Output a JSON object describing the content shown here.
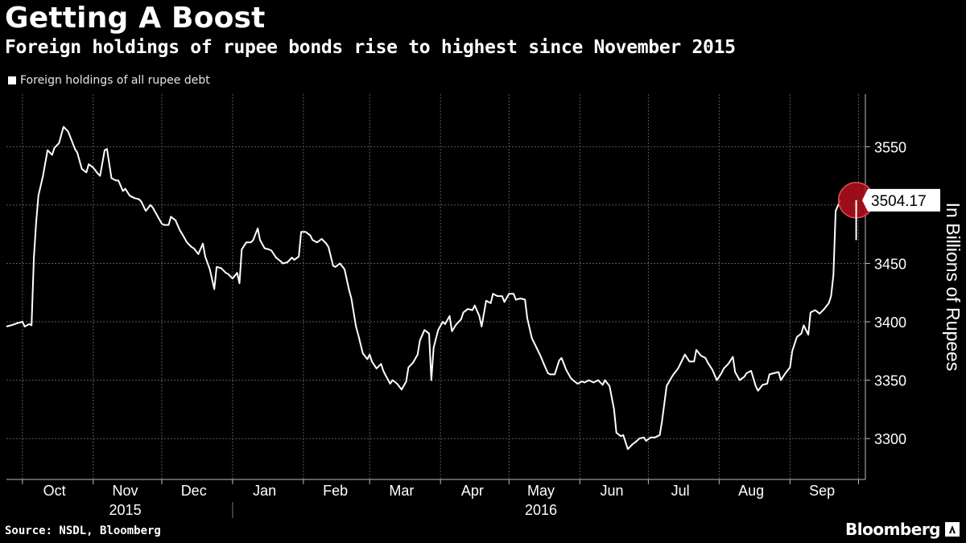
{
  "header": {
    "title": "Getting A Boost",
    "subtitle": "Foreign holdings of rupee bonds rise to highest since November 2015"
  },
  "legend": {
    "label": "Foreign holdings of all rupee debt"
  },
  "footer": {
    "source": "Source: NSDL, Bloomberg",
    "brand": "Bloomberg"
  },
  "colors": {
    "background": "#000000",
    "line": "#ffffff",
    "highlight": "#b5101f"
  },
  "chart_data": {
    "type": "line",
    "title": "Getting A Boost",
    "subtitle": "Foreign holdings of rupee bonds rise to highest since November 2015",
    "ylabel": "In Billions of Rupees",
    "xlabel": "",
    "ylim": [
      3265,
      3595
    ],
    "y_ticks": [
      3300,
      3350,
      3400,
      3450,
      3500,
      3550
    ],
    "grid": true,
    "legend_position": "top-left",
    "x_range": [
      "2015-09-24",
      "2016-10-04"
    ],
    "month_ticks": [
      {
        "label": "Oct",
        "date": "2015-10-15"
      },
      {
        "label": "Nov",
        "date": "2015-11-15"
      },
      {
        "label": "Dec",
        "date": "2015-12-15"
      },
      {
        "label": "Jan",
        "date": "2016-01-15"
      },
      {
        "label": "Feb",
        "date": "2016-02-15"
      },
      {
        "label": "Mar",
        "date": "2016-03-15"
      },
      {
        "label": "Apr",
        "date": "2016-04-15"
      },
      {
        "label": "May",
        "date": "2016-05-15"
      },
      {
        "label": "Jun",
        "date": "2016-06-15"
      },
      {
        "label": "Jul",
        "date": "2016-07-15"
      },
      {
        "label": "Aug",
        "date": "2016-08-15"
      },
      {
        "label": "Sep",
        "date": "2016-09-15"
      }
    ],
    "month_boundaries": [
      "2015-10-01",
      "2015-11-01",
      "2015-12-01",
      "2016-01-01",
      "2016-02-01",
      "2016-03-01",
      "2016-04-01",
      "2016-05-01",
      "2016-06-01",
      "2016-07-01",
      "2016-08-01",
      "2016-09-01",
      "2016-10-01"
    ],
    "year_labels": [
      {
        "label": "2015",
        "date": "2015-11-15"
      },
      {
        "label": "2016",
        "date": "2016-05-15"
      }
    ],
    "year_divider": "2016-01-01",
    "last_value": {
      "date": "2016-09-30",
      "value": 3504.17,
      "label": "3504.17"
    },
    "series": [
      {
        "name": "Foreign holdings of all rupee debt",
        "points": [
          [
            "2015-09-24",
            3396
          ],
          [
            "2015-09-26",
            3397
          ],
          [
            "2015-09-29",
            3399
          ],
          [
            "2015-10-01",
            3400
          ],
          [
            "2015-10-02",
            3396
          ],
          [
            "2015-10-04",
            3398
          ],
          [
            "2015-10-05",
            3397
          ],
          [
            "2015-10-06",
            3455
          ],
          [
            "2015-10-07",
            3485
          ],
          [
            "2015-10-08",
            3508
          ],
          [
            "2015-10-10",
            3525
          ],
          [
            "2015-10-12",
            3547
          ],
          [
            "2015-10-14",
            3543
          ],
          [
            "2015-10-15",
            3549
          ],
          [
            "2015-10-17",
            3553
          ],
          [
            "2015-10-19",
            3567
          ],
          [
            "2015-10-21",
            3563
          ],
          [
            "2015-10-22",
            3558
          ],
          [
            "2015-10-24",
            3548
          ],
          [
            "2015-10-25",
            3545
          ],
          [
            "2015-10-27",
            3531
          ],
          [
            "2015-10-29",
            3528
          ],
          [
            "2015-10-30",
            3535
          ],
          [
            "2015-11-01",
            3532
          ],
          [
            "2015-11-03",
            3527
          ],
          [
            "2015-11-04",
            3525
          ],
          [
            "2015-11-06",
            3547
          ],
          [
            "2015-11-07",
            3548
          ],
          [
            "2015-11-09",
            3523
          ],
          [
            "2015-11-11",
            3521
          ],
          [
            "2015-11-12",
            3521
          ],
          [
            "2015-11-14",
            3512
          ],
          [
            "2015-11-15",
            3514
          ],
          [
            "2015-11-17",
            3508
          ],
          [
            "2015-11-19",
            3506
          ],
          [
            "2015-11-21",
            3505
          ],
          [
            "2015-11-22",
            3503
          ],
          [
            "2015-11-24",
            3495
          ],
          [
            "2015-11-26",
            3500
          ],
          [
            "2015-11-27",
            3498
          ],
          [
            "2015-11-29",
            3491
          ],
          [
            "2015-12-01",
            3484
          ],
          [
            "2015-12-02",
            3483
          ],
          [
            "2015-12-04",
            3483
          ],
          [
            "2015-12-05",
            3490
          ],
          [
            "2015-12-07",
            3487
          ],
          [
            "2015-12-09",
            3478
          ],
          [
            "2015-12-10",
            3475
          ],
          [
            "2015-12-12",
            3468
          ],
          [
            "2015-12-14",
            3464
          ],
          [
            "2015-12-15",
            3463
          ],
          [
            "2015-12-17",
            3458
          ],
          [
            "2015-12-19",
            3467
          ],
          [
            "2015-12-20",
            3456
          ],
          [
            "2015-12-22",
            3445
          ],
          [
            "2015-12-24",
            3428
          ],
          [
            "2015-12-25",
            3447
          ],
          [
            "2015-12-27",
            3446
          ],
          [
            "2015-12-29",
            3442
          ],
          [
            "2015-12-30",
            3441
          ],
          [
            "2016-01-01",
            3437
          ],
          [
            "2016-01-03",
            3442
          ],
          [
            "2016-01-04",
            3433
          ],
          [
            "2016-01-05",
            3462
          ],
          [
            "2016-01-07",
            3468
          ],
          [
            "2016-01-09",
            3468
          ],
          [
            "2016-01-10",
            3470
          ],
          [
            "2016-01-12",
            3480
          ],
          [
            "2016-01-13",
            3470
          ],
          [
            "2016-01-15",
            3463
          ],
          [
            "2016-01-17",
            3462
          ],
          [
            "2016-01-18",
            3461
          ],
          [
            "2016-01-20",
            3455
          ],
          [
            "2016-01-22",
            3452
          ],
          [
            "2016-01-23",
            3450
          ],
          [
            "2016-01-25",
            3451
          ],
          [
            "2016-01-27",
            3455
          ],
          [
            "2016-01-28",
            3453
          ],
          [
            "2016-01-30",
            3456
          ],
          [
            "2016-01-31",
            3477
          ],
          [
            "2016-02-02",
            3477
          ],
          [
            "2016-02-04",
            3474
          ],
          [
            "2016-02-05",
            3470
          ],
          [
            "2016-02-07",
            3468
          ],
          [
            "2016-02-09",
            3471
          ],
          [
            "2016-02-11",
            3467
          ],
          [
            "2016-02-12",
            3464
          ],
          [
            "2016-02-14",
            3448
          ],
          [
            "2016-02-15",
            3447
          ],
          [
            "2016-02-17",
            3450
          ],
          [
            "2016-02-19",
            3445
          ],
          [
            "2016-02-21",
            3427
          ],
          [
            "2016-02-22",
            3420
          ],
          [
            "2016-02-24",
            3396
          ],
          [
            "2016-02-25",
            3389
          ],
          [
            "2016-02-27",
            3373
          ],
          [
            "2016-02-29",
            3368
          ],
          [
            "2016-03-01",
            3372
          ],
          [
            "2016-03-02",
            3366
          ],
          [
            "2016-03-04",
            3360
          ],
          [
            "2016-03-06",
            3364
          ],
          [
            "2016-03-07",
            3358
          ],
          [
            "2016-03-08",
            3354
          ],
          [
            "2016-03-10",
            3347
          ],
          [
            "2016-03-11",
            3350
          ],
          [
            "2016-03-13",
            3347
          ],
          [
            "2016-03-15",
            3342
          ],
          [
            "2016-03-17",
            3349
          ],
          [
            "2016-03-18",
            3361
          ],
          [
            "2016-03-20",
            3365
          ],
          [
            "2016-03-22",
            3372
          ],
          [
            "2016-03-23",
            3384
          ],
          [
            "2016-03-25",
            3393
          ],
          [
            "2016-03-27",
            3390
          ],
          [
            "2016-03-28",
            3350
          ],
          [
            "2016-03-29",
            3378
          ],
          [
            "2016-03-31",
            3393
          ],
          [
            "2016-04-02",
            3400
          ],
          [
            "2016-04-03",
            3398
          ],
          [
            "2016-04-05",
            3405
          ],
          [
            "2016-04-06",
            3392
          ],
          [
            "2016-04-08",
            3398
          ],
          [
            "2016-04-10",
            3402
          ],
          [
            "2016-04-11",
            3408
          ],
          [
            "2016-04-13",
            3411
          ],
          [
            "2016-04-15",
            3410
          ],
          [
            "2016-04-16",
            3414
          ],
          [
            "2016-04-18",
            3405
          ],
          [
            "2016-04-19",
            3396
          ],
          [
            "2016-04-21",
            3418
          ],
          [
            "2016-04-23",
            3416
          ],
          [
            "2016-04-24",
            3424
          ],
          [
            "2016-04-26",
            3422
          ],
          [
            "2016-04-28",
            3422
          ],
          [
            "2016-04-29",
            3417
          ],
          [
            "2016-05-01",
            3424
          ],
          [
            "2016-05-03",
            3424
          ],
          [
            "2016-05-04",
            3419
          ],
          [
            "2016-05-06",
            3420
          ],
          [
            "2016-05-08",
            3419
          ],
          [
            "2016-05-09",
            3403
          ],
          [
            "2016-05-11",
            3386
          ],
          [
            "2016-05-13",
            3378
          ],
          [
            "2016-05-15",
            3370
          ],
          [
            "2016-05-16",
            3365
          ],
          [
            "2016-05-18",
            3356
          ],
          [
            "2016-05-19",
            3355
          ],
          [
            "2016-05-21",
            3355
          ],
          [
            "2016-05-23",
            3367
          ],
          [
            "2016-05-24",
            3369
          ],
          [
            "2016-05-26",
            3359
          ],
          [
            "2016-05-28",
            3352
          ],
          [
            "2016-05-29",
            3350
          ],
          [
            "2016-05-31",
            3347
          ],
          [
            "2016-06-02",
            3349
          ],
          [
            "2016-06-03",
            3348
          ],
          [
            "2016-06-05",
            3350
          ],
          [
            "2016-06-07",
            3348
          ],
          [
            "2016-06-09",
            3350
          ],
          [
            "2016-06-11",
            3346
          ],
          [
            "2016-06-12",
            3350
          ],
          [
            "2016-06-14",
            3345
          ],
          [
            "2016-06-16",
            3325
          ],
          [
            "2016-06-17",
            3305
          ],
          [
            "2016-06-19",
            3302
          ],
          [
            "2016-06-20",
            3303
          ],
          [
            "2016-06-22",
            3291
          ],
          [
            "2016-06-24",
            3295
          ],
          [
            "2016-06-26",
            3298
          ],
          [
            "2016-06-27",
            3300
          ],
          [
            "2016-06-29",
            3301
          ],
          [
            "2016-06-30",
            3298
          ],
          [
            "2016-07-02",
            3301
          ],
          [
            "2016-07-04",
            3301
          ],
          [
            "2016-07-06",
            3303
          ],
          [
            "2016-07-07",
            3315
          ],
          [
            "2016-07-09",
            3345
          ],
          [
            "2016-07-11",
            3352
          ],
          [
            "2016-07-12",
            3355
          ],
          [
            "2016-07-14",
            3360
          ],
          [
            "2016-07-16",
            3368
          ],
          [
            "2016-07-17",
            3372
          ],
          [
            "2016-07-19",
            3366
          ],
          [
            "2016-07-21",
            3366
          ],
          [
            "2016-07-22",
            3376
          ],
          [
            "2016-07-24",
            3371
          ],
          [
            "2016-07-26",
            3369
          ],
          [
            "2016-07-27",
            3365
          ],
          [
            "2016-07-29",
            3359
          ],
          [
            "2016-07-31",
            3350
          ],
          [
            "2016-08-02",
            3356
          ],
          [
            "2016-08-03",
            3360
          ],
          [
            "2016-08-05",
            3364
          ],
          [
            "2016-08-07",
            3370
          ],
          [
            "2016-08-08",
            3357
          ],
          [
            "2016-08-10",
            3350
          ],
          [
            "2016-08-12",
            3353
          ],
          [
            "2016-08-13",
            3356
          ],
          [
            "2016-08-15",
            3358
          ],
          [
            "2016-08-17",
            3345
          ],
          [
            "2016-08-18",
            3341
          ],
          [
            "2016-08-20",
            3346
          ],
          [
            "2016-08-22",
            3347
          ],
          [
            "2016-08-23",
            3355
          ],
          [
            "2016-08-25",
            3356
          ],
          [
            "2016-08-27",
            3357
          ],
          [
            "2016-08-28",
            3350
          ],
          [
            "2016-08-30",
            3356
          ],
          [
            "2016-09-01",
            3361
          ],
          [
            "2016-09-02",
            3375
          ],
          [
            "2016-09-04",
            3387
          ],
          [
            "2016-09-06",
            3390
          ],
          [
            "2016-09-07",
            3397
          ],
          [
            "2016-09-09",
            3389
          ],
          [
            "2016-09-10",
            3408
          ],
          [
            "2016-09-12",
            3410
          ],
          [
            "2016-09-14",
            3407
          ],
          [
            "2016-09-16",
            3411
          ],
          [
            "2016-09-18",
            3416
          ],
          [
            "2016-09-19",
            3422
          ],
          [
            "2016-09-20",
            3440
          ],
          [
            "2016-09-21",
            3495
          ],
          [
            "2016-09-23",
            3504.17
          ]
        ]
      }
    ]
  }
}
